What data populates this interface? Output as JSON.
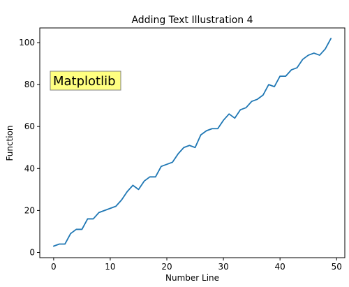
{
  "chart_data": {
    "type": "line",
    "title": "Adding Text Illustration 4",
    "xlabel": "Number Line",
    "ylabel": "Function",
    "xlim": [
      -2.45,
      51.45
    ],
    "ylim": [
      -2.5,
      107
    ],
    "x_ticks": [
      0,
      10,
      20,
      30,
      40,
      50
    ],
    "y_ticks": [
      0,
      20,
      40,
      60,
      80,
      100
    ],
    "grid": false,
    "series": [
      {
        "color": "#1f77b4",
        "x": [
          0,
          1,
          2,
          3,
          4,
          5,
          6,
          7,
          8,
          9,
          10,
          11,
          12,
          13,
          14,
          15,
          16,
          17,
          18,
          19,
          20,
          21,
          22,
          23,
          24,
          25,
          26,
          27,
          28,
          29,
          30,
          31,
          32,
          33,
          34,
          35,
          36,
          37,
          38,
          39,
          40,
          41,
          42,
          43,
          44,
          45,
          46,
          47,
          48,
          49
        ],
        "y": [
          3,
          4,
          4,
          9,
          11,
          11,
          16,
          16,
          19,
          20,
          21,
          22,
          25,
          29,
          32,
          30,
          34,
          36,
          36,
          41,
          42,
          43,
          47,
          50,
          51,
          50,
          56,
          58,
          59,
          59,
          63,
          66,
          64,
          68,
          69,
          72,
          73,
          75,
          80,
          79,
          84,
          84,
          87,
          88,
          92,
          94,
          95,
          94,
          97,
          102
        ]
      }
    ],
    "annotation": {
      "text": "Matplotlib",
      "x": 0,
      "y": 80,
      "box_color": "#ffff80",
      "box_edge": "#808080"
    }
  }
}
